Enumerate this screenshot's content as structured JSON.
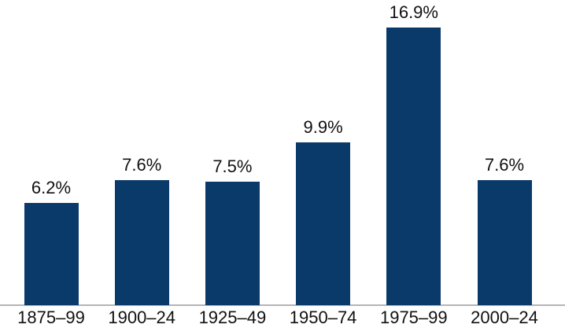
{
  "chart_data": {
    "type": "bar",
    "categories": [
      "1875–99",
      "1900–24",
      "1925–49",
      "1950–74",
      "1975–99",
      "2000–24"
    ],
    "values": [
      6.2,
      7.6,
      7.5,
      9.9,
      16.9,
      7.6
    ],
    "value_labels": [
      "6.2%",
      "7.6%",
      "7.5%",
      "9.9%",
      "16.9%",
      "7.6%"
    ],
    "title": "",
    "xlabel": "",
    "ylabel": "",
    "ylim": [
      0,
      18
    ],
    "grid": false,
    "legend": "none",
    "bar_color": "#0a3a69",
    "axis_line_color": "#b5b5b5",
    "label_color": "#111111"
  }
}
